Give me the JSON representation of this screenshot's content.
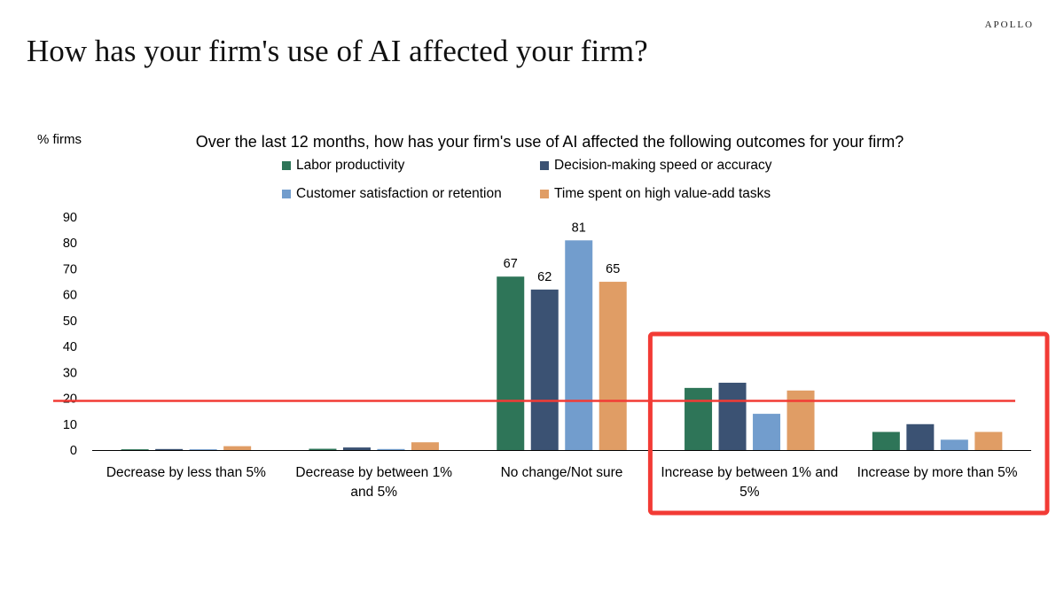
{
  "brand": "APOLLO",
  "page_title": "How has your firm's use of AI affected your firm?",
  "colors": {
    "labor": "#2e7558",
    "decision": "#3b5273",
    "customer": "#729dcd",
    "time": "#e09d65",
    "highlight": "#f23b35",
    "axis": "#000000"
  },
  "chart_data": {
    "type": "bar",
    "title": "Over the last 12 months, how has your firm's use of AI affected the following outcomes for your firm?",
    "ylabel": "% firms",
    "xlabel": "",
    "ylim": [
      0,
      90
    ],
    "yticks": [
      0,
      10,
      20,
      30,
      40,
      50,
      60,
      70,
      80,
      90
    ],
    "grid": false,
    "legend_position": "top",
    "categories": [
      [
        "Decrease by less than 5%"
      ],
      [
        "Decrease by between 1%",
        "and 5%"
      ],
      [
        "No change/Not sure"
      ],
      [
        "Increase by between 1% and",
        "5%"
      ],
      [
        "Increase by more than 5%"
      ]
    ],
    "series": [
      {
        "name": "Labor productivity",
        "color_key": "labor",
        "values": [
          0.3,
          0.5,
          67,
          24,
          7
        ]
      },
      {
        "name": "Decision-making speed or accuracy",
        "color_key": "decision",
        "values": [
          0.4,
          1,
          62,
          26,
          10
        ]
      },
      {
        "name": "Customer satisfaction or retention",
        "color_key": "customer",
        "values": [
          0.3,
          0.4,
          81,
          14,
          4
        ]
      },
      {
        "name": "Time spent on high value-add tasks",
        "color_key": "time",
        "values": [
          1.5,
          3,
          65,
          23,
          7
        ]
      }
    ],
    "data_labels": {
      "category_index": 2,
      "values": [
        "67",
        "62",
        "81",
        "65"
      ]
    },
    "annotations": {
      "horizontal_line_value": 19,
      "highlight_box_categories": [
        3,
        4
      ]
    }
  }
}
